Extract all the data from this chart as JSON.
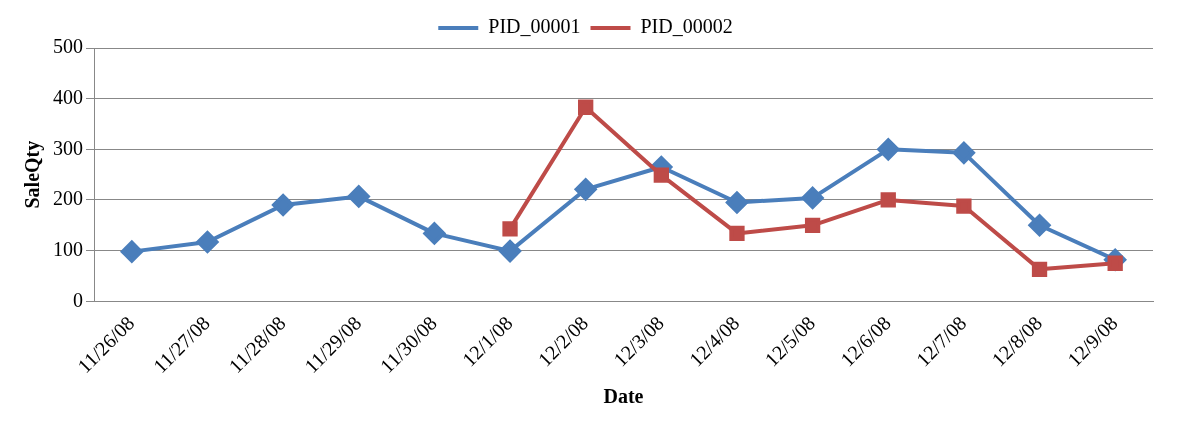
{
  "chart_data": {
    "type": "line",
    "xlabel": "Date",
    "ylabel": "SaleQty",
    "categories": [
      "11/26/08",
      "11/27/08",
      "11/28/08",
      "11/29/08",
      "11/30/08",
      "12/1/08",
      "12/2/08",
      "12/3/08",
      "12/4/08",
      "12/5/08",
      "12/6/08",
      "12/7/08",
      "12/8/08",
      "12/9/08"
    ],
    "series": [
      {
        "name": "PID_00001",
        "color": "#4a7ebb",
        "marker": "diamond",
        "values": [
          98,
          117,
          190,
          207,
          134,
          99,
          221,
          265,
          195,
          204,
          300,
          293,
          150,
          82
        ]
      },
      {
        "name": "PID_00002",
        "color": "#be4b48",
        "marker": "square",
        "values": [
          null,
          null,
          null,
          null,
          null,
          143,
          383,
          249,
          134,
          150,
          200,
          188,
          63,
          75
        ]
      }
    ],
    "ylim": [
      0,
      500
    ],
    "yticks": [
      0,
      100,
      200,
      300,
      400,
      500
    ],
    "grid": "y",
    "legend": "top",
    "line_style": "solid"
  }
}
